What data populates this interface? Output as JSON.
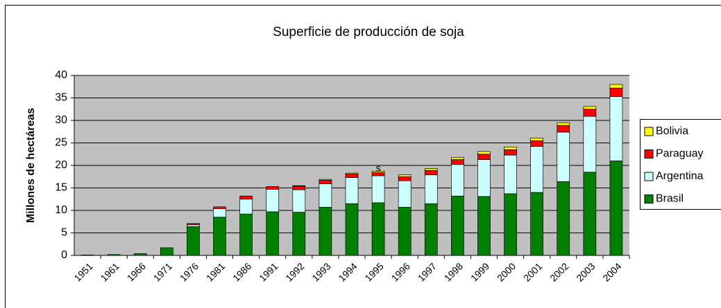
{
  "chart_data": {
    "type": "stacked_bar",
    "title": "Superficie de producción de  soja",
    "y_label": "Millones de hectáreas",
    "annotation": "s",
    "categories": [
      "1951",
      "1961",
      "1966",
      "1971",
      "1976",
      "1981",
      "1986",
      "1991",
      "1992",
      "1993",
      "1994",
      "1995",
      "1996",
      "1997",
      "1998",
      "1999",
      "2000",
      "2001",
      "2002",
      "2003",
      "2004"
    ],
    "series": [
      {
        "name": "Brasil",
        "color": "#008000",
        "values": [
          0.1,
          0.2,
          0.4,
          1.7,
          6.4,
          8.5,
          9.2,
          9.7,
          9.6,
          10.7,
          11.5,
          11.7,
          10.7,
          11.5,
          13.2,
          13.1,
          13.7,
          14.0,
          16.4,
          18.5,
          21.0
        ]
      },
      {
        "name": "Argentina",
        "color": "#ccffff",
        "values": [
          0,
          0,
          0,
          0,
          0.4,
          1.9,
          3.3,
          5.0,
          5.0,
          5.2,
          5.8,
          6.0,
          5.9,
          6.4,
          7.0,
          8.2,
          8.6,
          10.2,
          11.0,
          12.4,
          14.3
        ]
      },
      {
        "name": "Paraguay",
        "color": "#ff0000",
        "values": [
          0,
          0,
          0,
          0,
          0.3,
          0.4,
          0.7,
          0.6,
          0.8,
          0.8,
          0.8,
          0.7,
          0.9,
          1.0,
          1.1,
          1.2,
          1.2,
          1.3,
          1.5,
          1.6,
          1.9
        ]
      },
      {
        "name": "Bolivia",
        "color": "#ffff00",
        "values": [
          0,
          0,
          0,
          0,
          0,
          0,
          0,
          0,
          0.1,
          0.2,
          0.2,
          0.3,
          0.4,
          0.4,
          0.5,
          0.6,
          0.6,
          0.6,
          0.6,
          0.6,
          0.8
        ]
      }
    ],
    "ylim": [
      0,
      40
    ],
    "yticks": [
      0,
      5,
      10,
      15,
      20,
      25,
      30,
      35,
      40
    ],
    "grid": true,
    "legend": "right",
    "plot_background": "#c0c0c0"
  }
}
